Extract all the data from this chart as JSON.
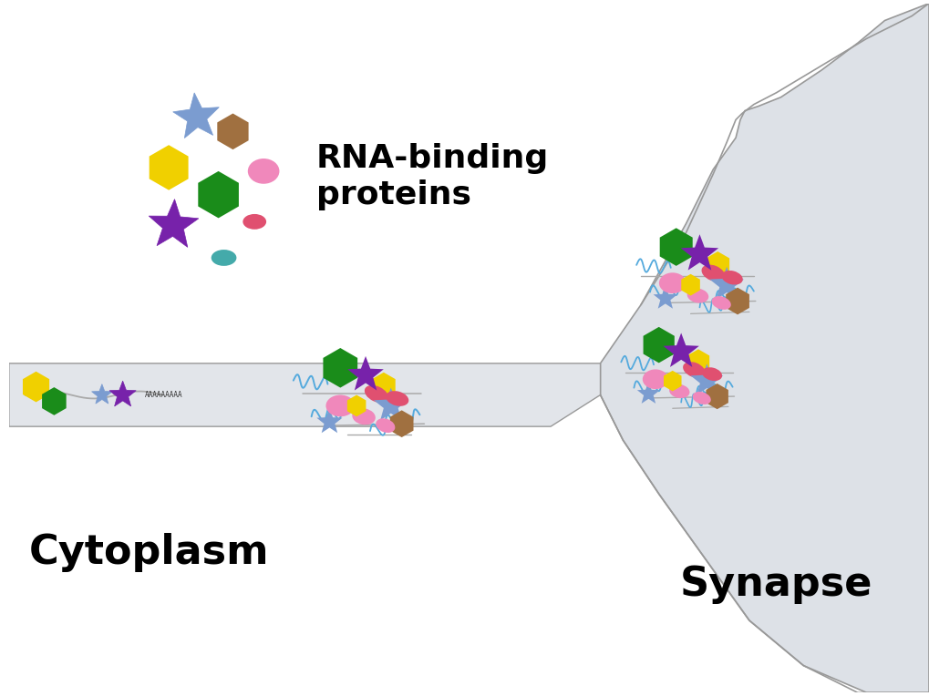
{
  "background_color": "#ffffff",
  "cytoplasm_label": "Cytoplasm",
  "synapse_label": "Synapse",
  "rna_binding_label": "RNA-binding\nproteins",
  "poly_a_label": "AAAAAAAAA",
  "axon_color": "#e2e5ea",
  "axon_border": "#999999",
  "synapse_fill": "#dde1e7",
  "synapse_border": "#999999",
  "colors": {
    "yellow_hex": "#f0d000",
    "green_hex": "#1a8c1a",
    "blue_star": "#7b9cd0",
    "purple_star": "#7722aa",
    "pink_oval": "#f088bb",
    "red_oval": "#e05070",
    "brown_hex": "#a07040",
    "teal_oval": "#44aaaa",
    "blue_squiggle": "#55aadd",
    "gray_line": "#aaaaaa"
  }
}
